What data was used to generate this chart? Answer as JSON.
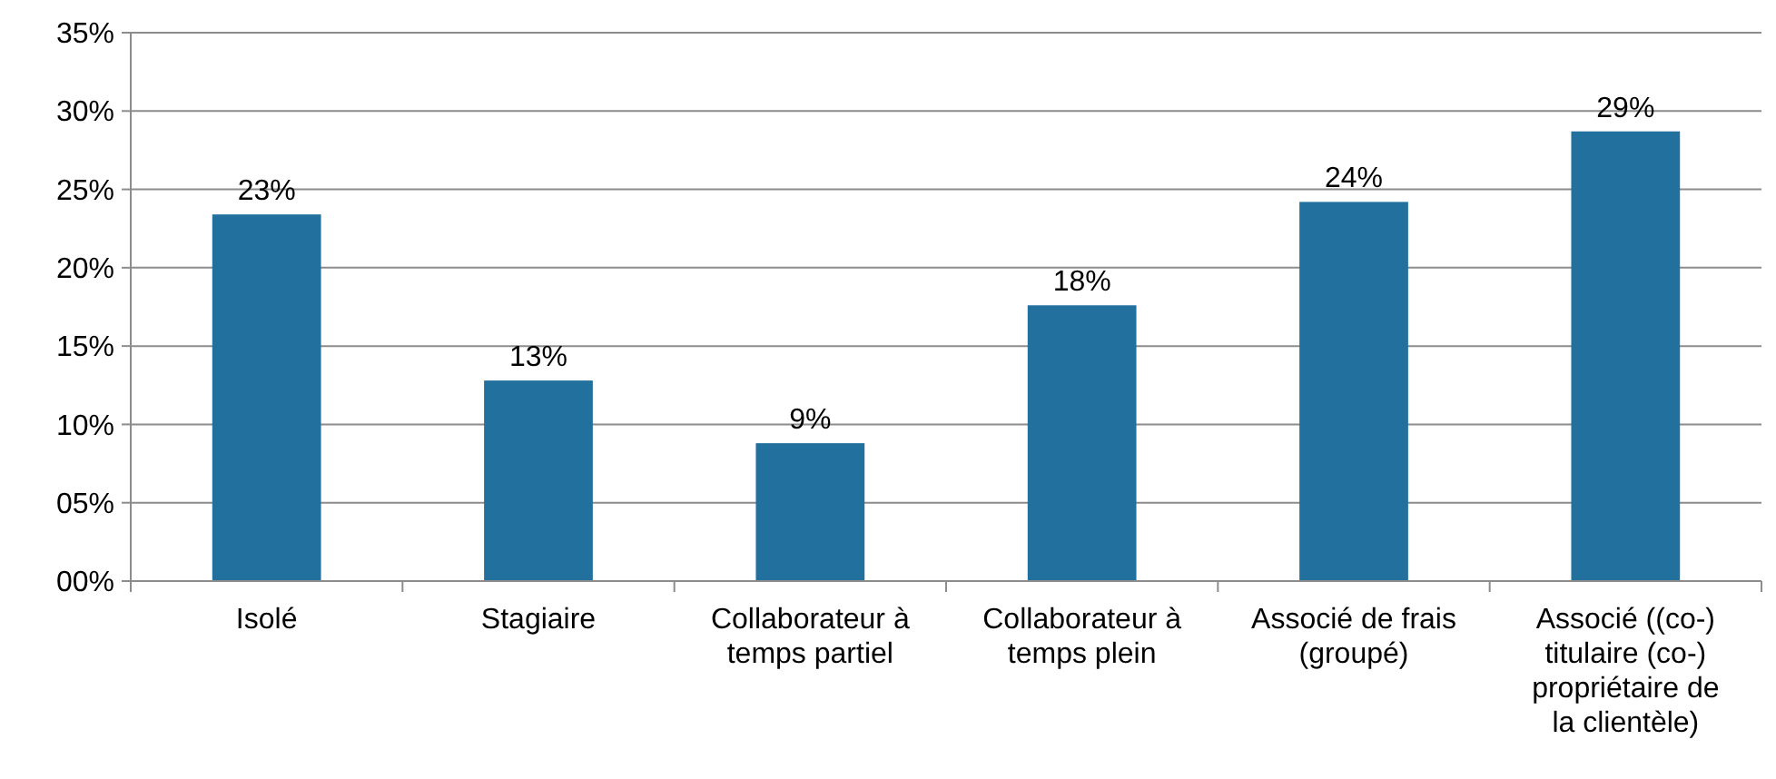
{
  "chart_data": {
    "type": "bar",
    "categories": [
      "Isolé",
      "Stagiaire",
      "Collaborateur à temps partiel",
      "Collaborateur à temps plein",
      "Associé de frais (groupé)",
      "Associé ((co-) titulaire (co-) propriétaire de la clientèle)"
    ],
    "values": [
      23.4,
      12.8,
      8.8,
      17.6,
      24.2,
      28.7
    ],
    "value_labels": [
      "23%",
      "13%",
      "9%",
      "18%",
      "24%",
      "29%"
    ],
    "color": "#22709e",
    "ylim": [
      0,
      35
    ],
    "yticks": [
      {
        "value": 0,
        "label": "00%"
      },
      {
        "value": 5,
        "label": "05%"
      },
      {
        "value": 10,
        "label": "10%"
      },
      {
        "value": 15,
        "label": "15%"
      },
      {
        "value": 20,
        "label": "20%"
      },
      {
        "value": 25,
        "label": "25%"
      },
      {
        "value": 30,
        "label": "30%"
      },
      {
        "value": 35,
        "label": "35%"
      }
    ],
    "grid": "y"
  }
}
